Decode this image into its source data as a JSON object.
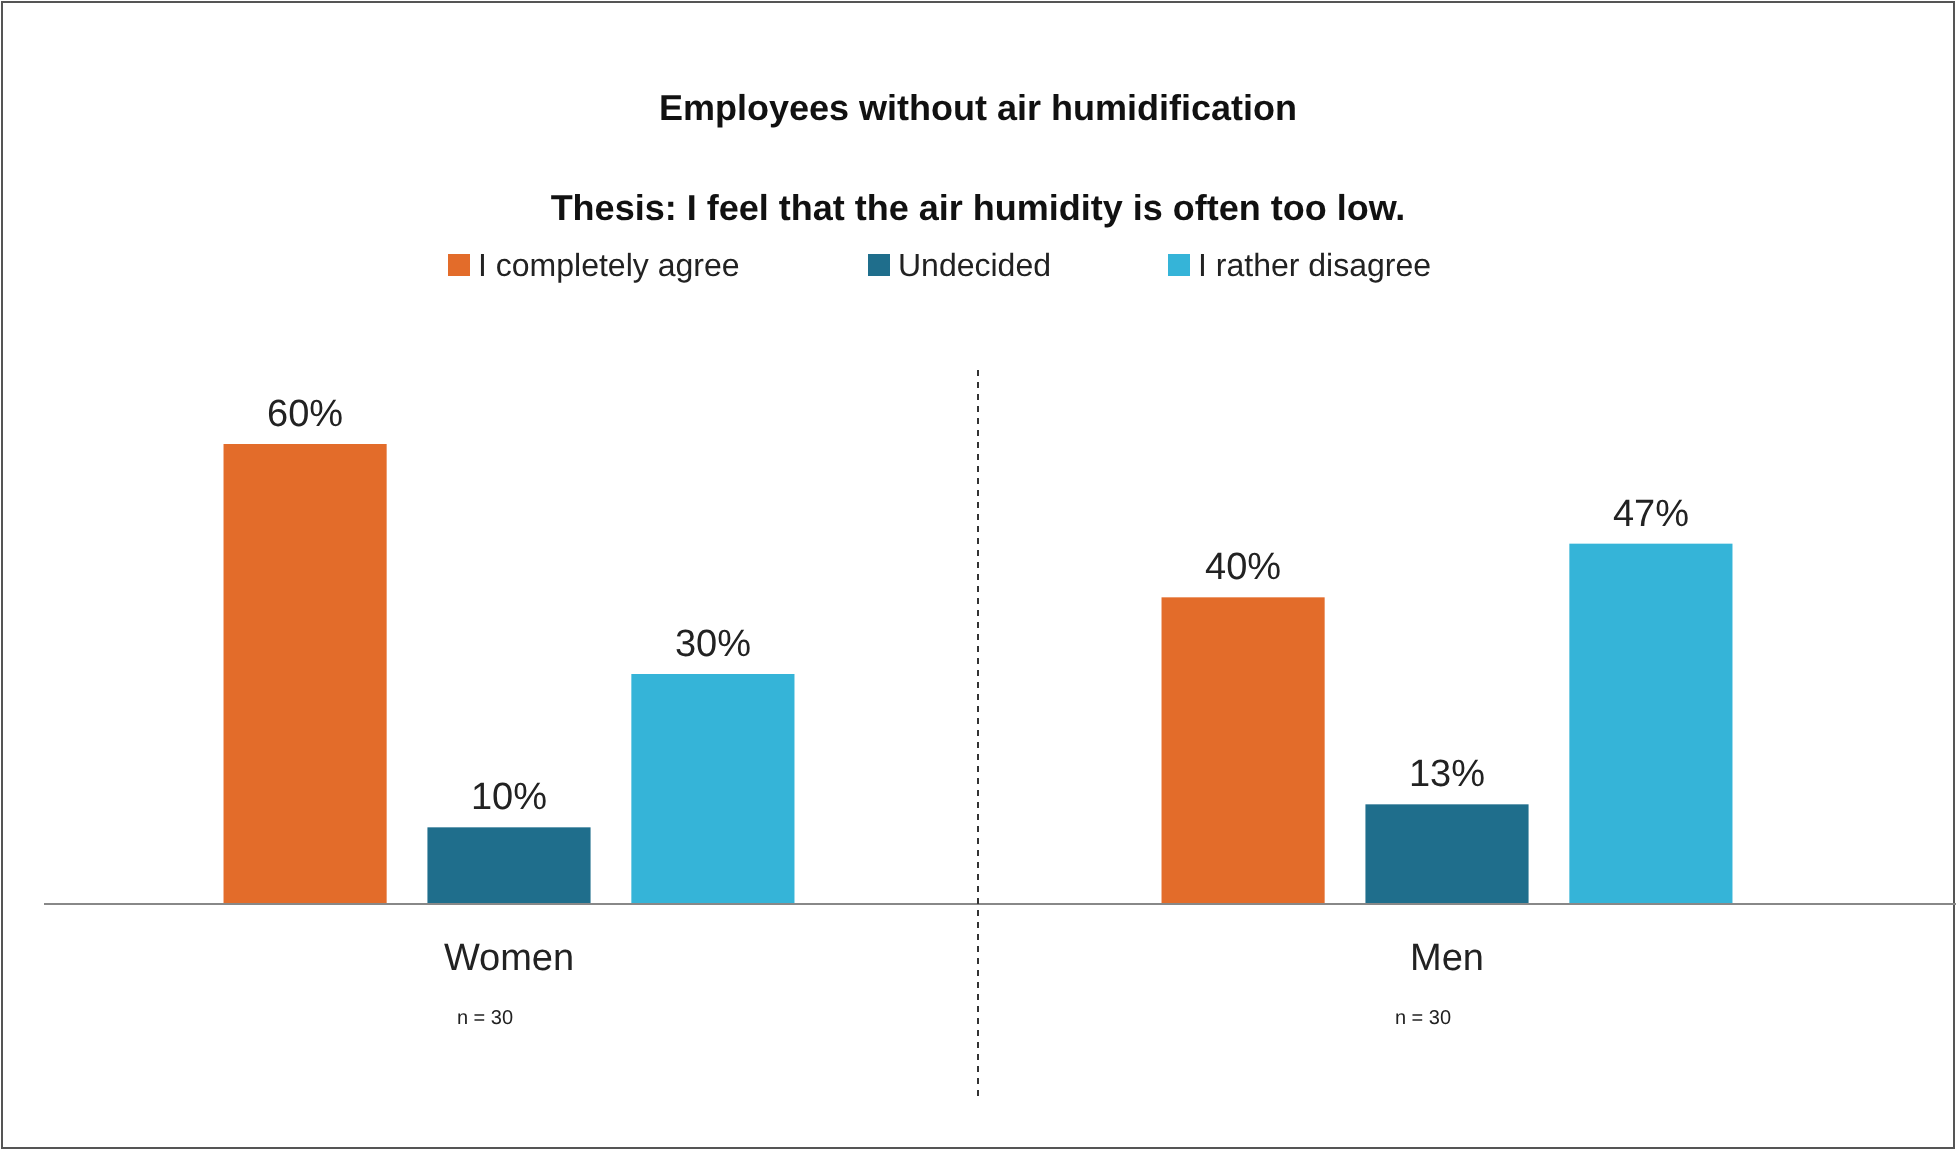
{
  "chart_data": {
    "type": "bar",
    "title": "Employees without air humidification",
    "subtitle": "Thesis: I feel that the air humidity is often too low.",
    "categories": [
      "Women",
      "Men"
    ],
    "series": [
      {
        "name": "I completely agree",
        "color": "#e36c2a",
        "values": [
          60,
          40
        ],
        "value_labels": [
          "60%",
          "40%"
        ]
      },
      {
        "name": "Undecided",
        "color": "#1f6e8c",
        "values": [
          10,
          13
        ],
        "value_labels": [
          "10%",
          "13%"
        ]
      },
      {
        "name": "I rather disagree",
        "color": "#35b4d8",
        "values": [
          30,
          47
        ],
        "value_labels": [
          "30%",
          "47%"
        ]
      }
    ],
    "legend": "top",
    "grid": false,
    "annotations": [
      "n = 30",
      "n = 30"
    ]
  }
}
